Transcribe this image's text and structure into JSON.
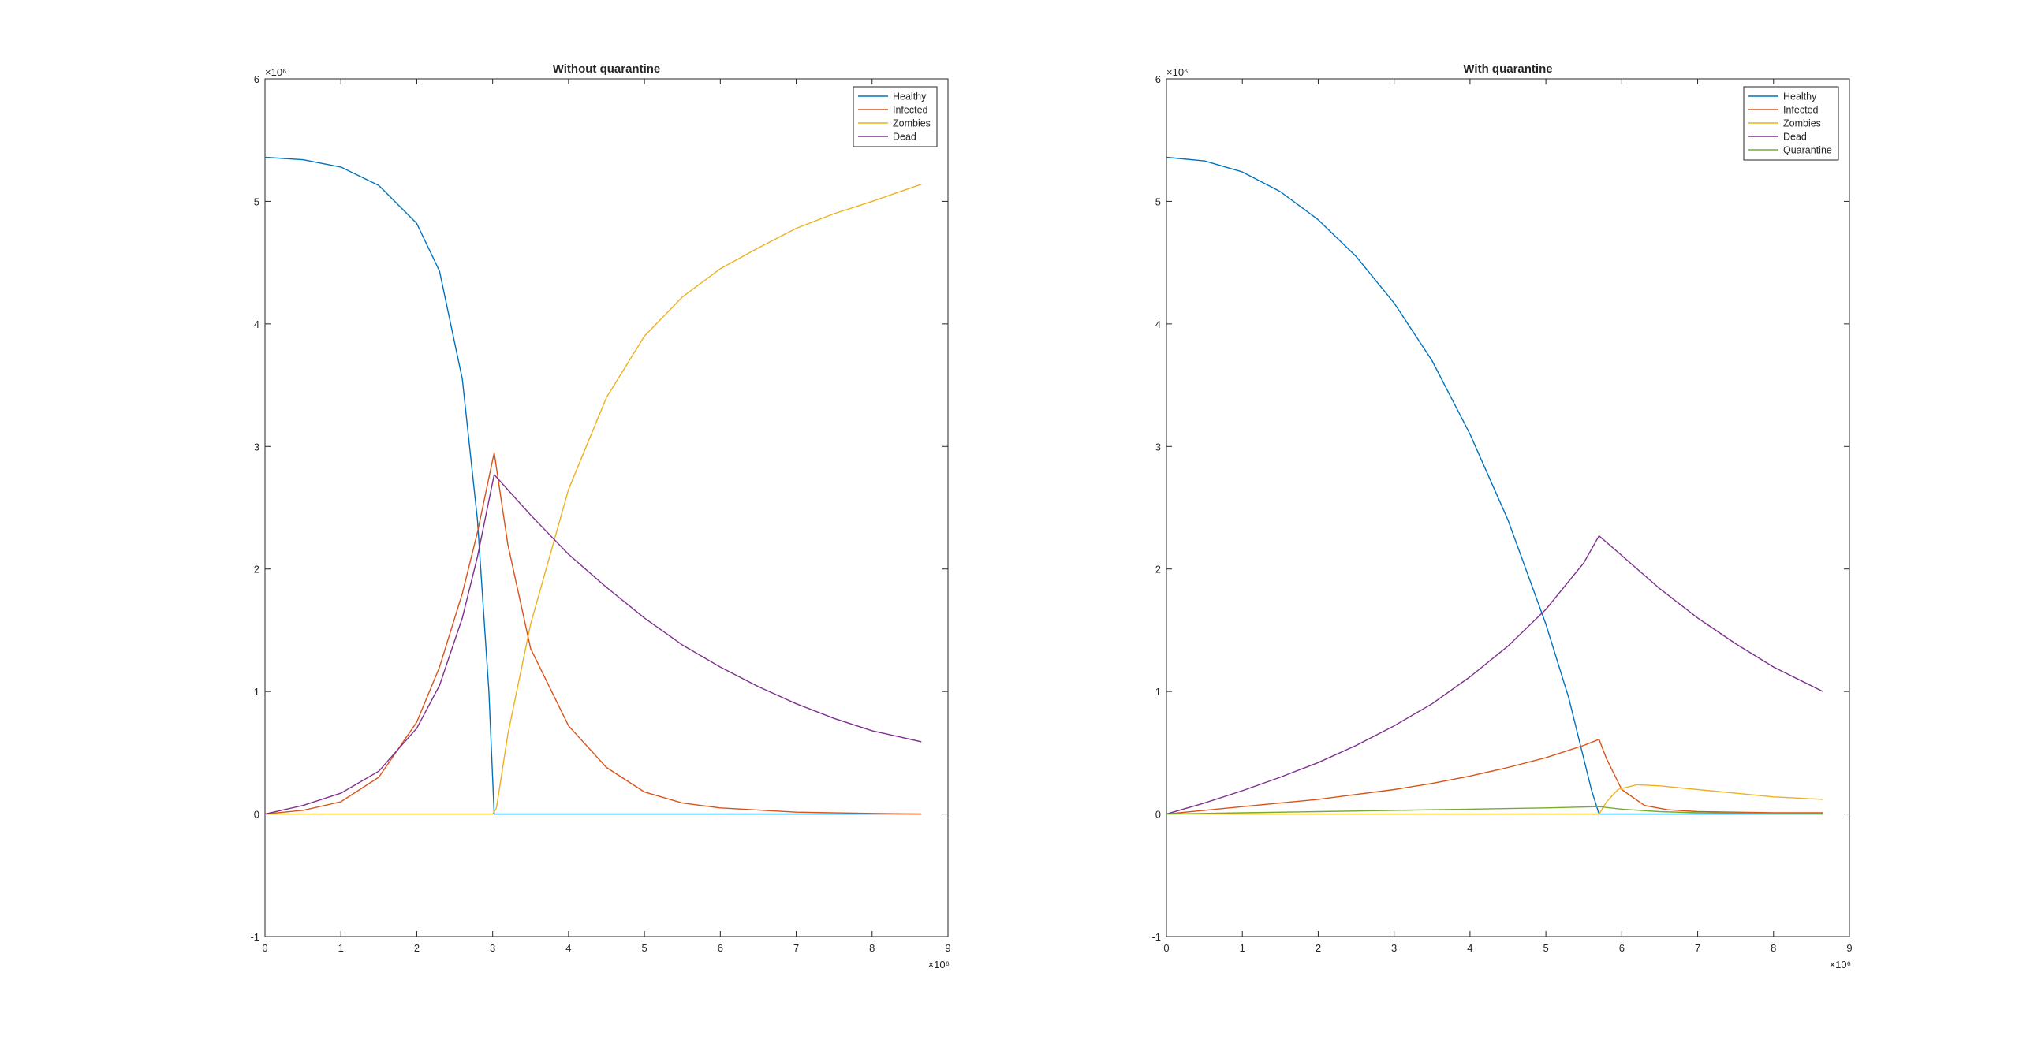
{
  "figure": {
    "background": "#ffffff",
    "axis_color": "#262626",
    "series_colors": {
      "Healthy": "#0072BD",
      "Infected": "#D95319",
      "Zombies": "#EDB120",
      "Dead": "#7E2F8E",
      "Quarantine": "#77AC30"
    }
  },
  "chart_data": [
    {
      "type": "line",
      "title": "Without quarantine",
      "xlabel": "",
      "ylabel": "",
      "xlim": [
        0,
        9
      ],
      "ylim": [
        -1,
        6
      ],
      "x_exponent": "×10⁶",
      "y_exponent": "×10⁶",
      "xticks": [
        0,
        1,
        2,
        3,
        4,
        5,
        6,
        7,
        8,
        9
      ],
      "yticks": [
        -1,
        0,
        1,
        2,
        3,
        4,
        5,
        6
      ],
      "legend_position": "top-right",
      "grid": false,
      "series": [
        {
          "name": "Healthy",
          "x": [
            0,
            0.5,
            1.0,
            1.5,
            2.0,
            2.3,
            2.6,
            2.8,
            2.95,
            3.02,
            3.5,
            4,
            5,
            6,
            7,
            8,
            8.65
          ],
          "y": [
            5.36,
            5.34,
            5.28,
            5.13,
            4.82,
            4.43,
            3.55,
            2.4,
            1.0,
            0,
            0,
            0,
            0,
            0,
            0,
            0,
            0
          ]
        },
        {
          "name": "Infected",
          "x": [
            0,
            0.5,
            1.0,
            1.5,
            2.0,
            2.3,
            2.6,
            2.8,
            3.02,
            3.2,
            3.5,
            4.0,
            4.5,
            5.0,
            5.5,
            6.0,
            7.0,
            8.0,
            8.65
          ],
          "y": [
            0,
            0.03,
            0.1,
            0.3,
            0.75,
            1.2,
            1.8,
            2.3,
            2.95,
            2.2,
            1.35,
            0.72,
            0.38,
            0.18,
            0.09,
            0.05,
            0.015,
            0.005,
            0
          ]
        },
        {
          "name": "Zombies",
          "x": [
            0,
            1,
            2,
            3.0,
            3.05,
            3.2,
            3.5,
            4.0,
            4.5,
            5.0,
            5.5,
            6.0,
            6.5,
            7.0,
            7.5,
            8.0,
            8.65
          ],
          "y": [
            0,
            0,
            0,
            0,
            0.05,
            0.65,
            1.55,
            2.65,
            3.4,
            3.9,
            4.22,
            4.45,
            4.62,
            4.78,
            4.9,
            5.0,
            5.14
          ]
        },
        {
          "name": "Dead",
          "x": [
            0,
            0.5,
            1.0,
            1.5,
            2.0,
            2.3,
            2.6,
            2.8,
            3.02,
            3.5,
            4.0,
            4.5,
            5.0,
            5.5,
            6.0,
            6.5,
            7.0,
            7.5,
            8.0,
            8.65
          ],
          "y": [
            0,
            0.07,
            0.17,
            0.35,
            0.7,
            1.05,
            1.6,
            2.1,
            2.77,
            2.44,
            2.12,
            1.85,
            1.6,
            1.38,
            1.2,
            1.04,
            0.9,
            0.78,
            0.68,
            0.59
          ]
        }
      ]
    },
    {
      "type": "line",
      "title": "With quarantine",
      "xlabel": "",
      "ylabel": "",
      "xlim": [
        0,
        9
      ],
      "ylim": [
        -1,
        6
      ],
      "x_exponent": "×10⁶",
      "y_exponent": "×10⁶",
      "xticks": [
        0,
        1,
        2,
        3,
        4,
        5,
        6,
        7,
        8,
        9
      ],
      "yticks": [
        -1,
        0,
        1,
        2,
        3,
        4,
        5,
        6
      ],
      "legend_position": "top-right",
      "grid": false,
      "series": [
        {
          "name": "Healthy",
          "x": [
            0,
            0.5,
            1.0,
            1.5,
            2.0,
            2.5,
            3.0,
            3.5,
            4.0,
            4.5,
            5.0,
            5.3,
            5.6,
            5.7,
            6.0,
            7.0,
            8.0,
            8.65
          ],
          "y": [
            5.36,
            5.33,
            5.24,
            5.08,
            4.85,
            4.55,
            4.17,
            3.7,
            3.1,
            2.4,
            1.55,
            0.95,
            0.2,
            0,
            0,
            0,
            0,
            0
          ]
        },
        {
          "name": "Infected",
          "x": [
            0,
            0.5,
            1.0,
            1.5,
            2.0,
            2.5,
            3.0,
            3.5,
            4.0,
            4.5,
            5.0,
            5.5,
            5.7,
            5.8,
            6.0,
            6.3,
            6.6,
            7.0,
            8.0,
            8.65
          ],
          "y": [
            0,
            0.03,
            0.06,
            0.09,
            0.12,
            0.16,
            0.2,
            0.25,
            0.31,
            0.38,
            0.46,
            0.56,
            0.61,
            0.45,
            0.2,
            0.07,
            0.035,
            0.02,
            0.01,
            0.01
          ]
        },
        {
          "name": "Zombies",
          "x": [
            0,
            2,
            4,
            5.7,
            5.8,
            5.95,
            6.2,
            6.5,
            7.0,
            7.5,
            8.0,
            8.65
          ],
          "y": [
            0,
            0,
            0,
            0,
            0.1,
            0.2,
            0.24,
            0.23,
            0.2,
            0.17,
            0.14,
            0.12
          ]
        },
        {
          "name": "Dead",
          "x": [
            0,
            0.5,
            1.0,
            1.5,
            2.0,
            2.5,
            3.0,
            3.5,
            4.0,
            4.5,
            5.0,
            5.5,
            5.7,
            6.0,
            6.5,
            7.0,
            7.5,
            8.0,
            8.65
          ],
          "y": [
            0,
            0.09,
            0.19,
            0.3,
            0.42,
            0.56,
            0.72,
            0.9,
            1.12,
            1.37,
            1.67,
            2.05,
            2.27,
            2.11,
            1.84,
            1.6,
            1.39,
            1.2,
            1.0
          ]
        },
        {
          "name": "Quarantine",
          "x": [
            0,
            1,
            2,
            3,
            4,
            5,
            5.7,
            6.0,
            6.5,
            7.0,
            8.0,
            8.65
          ],
          "y": [
            0,
            0.01,
            0.02,
            0.03,
            0.04,
            0.05,
            0.06,
            0.04,
            0.02,
            0.01,
            0.005,
            0.003
          ]
        }
      ]
    }
  ]
}
